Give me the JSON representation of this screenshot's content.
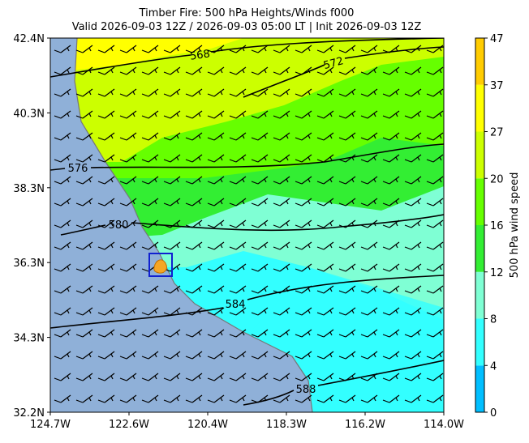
{
  "map": {
    "title": "Timber Fire: 500 hPa Heights/Winds f000",
    "subtitle": "Valid 2026-09-03 12Z / 2026-09-03 05:00 LT | Init 2026-09-03 12Z",
    "x_tick_labels": [
      "124.7W",
      "122.6W",
      "120.4W",
      "118.3W",
      "116.2W",
      "114.0W"
    ],
    "y_tick_labels": [
      "42.4N",
      "40.3N",
      "38.3N",
      "36.3N",
      "34.3N",
      "32.2N"
    ],
    "contour_labels": [
      "568",
      "572",
      "576",
      "580",
      "584",
      "588"
    ],
    "colorbar": {
      "label": "500 hPa wind speed",
      "ticks": [
        0,
        4,
        8,
        12,
        16,
        20,
        27,
        37,
        47
      ],
      "colors": [
        "#1e6cff",
        "#00bfff",
        "#33ffff",
        "#7fffd4",
        "#33ee33",
        "#66ff00",
        "#ccff00",
        "#ffff00",
        "#ffcc00",
        "#ff8800",
        "#ff3300"
      ]
    }
  }
}
